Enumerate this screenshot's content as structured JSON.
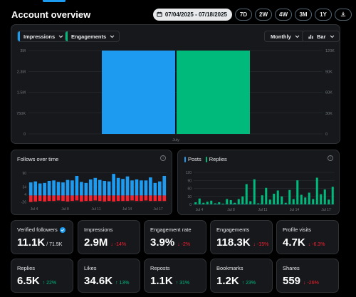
{
  "header": {
    "title": "Account overview",
    "date_range": "07/04/2025 - 07/18/2025",
    "ranges": [
      "7D",
      "2W",
      "4W",
      "3M",
      "1Y"
    ]
  },
  "main_chart": {
    "metric_left": "Impressions",
    "metric_right": "Engagements",
    "interval": "Monthly",
    "chart_type": "Bar",
    "left_color": "#1d9bf0",
    "right_color": "#00ba7c"
  },
  "follows_card": {
    "title": "Follows over time"
  },
  "posts_card": {
    "legend_posts": "Posts",
    "legend_replies": "Replies"
  },
  "metrics": [
    {
      "label": "Verified followers",
      "value": "11.1K",
      "sub": "/ 71.5K",
      "delta": "",
      "dir": ""
    },
    {
      "label": "Impressions",
      "value": "2.9M",
      "sub": "",
      "delta": "↓ -14%",
      "dir": "neg"
    },
    {
      "label": "Engagement rate",
      "value": "3.9%",
      "sub": "",
      "delta": "↓ -2%",
      "dir": "neg"
    },
    {
      "label": "Engagements",
      "value": "118.3K",
      "sub": "",
      "delta": "↓ -15%",
      "dir": "neg"
    },
    {
      "label": "Profile visits",
      "value": "4.7K",
      "sub": "",
      "delta": "↓ -6.3%",
      "dir": "neg"
    },
    {
      "label": "Replies",
      "value": "6.5K",
      "sub": "",
      "delta": "↑ 22%",
      "dir": "pos"
    },
    {
      "label": "Likes",
      "value": "34.6K",
      "sub": "",
      "delta": "↑ 13%",
      "dir": "pos"
    },
    {
      "label": "Reposts",
      "value": "1.1K",
      "sub": "",
      "delta": "↑ 31%",
      "dir": "pos"
    },
    {
      "label": "Bookmarks",
      "value": "1.2K",
      "sub": "",
      "delta": "↑ 23%",
      "dir": "pos"
    },
    {
      "label": "Shares",
      "value": "559",
      "sub": "",
      "delta": "↓ -26%",
      "dir": "neg"
    }
  ],
  "chart_data": [
    {
      "type": "bar",
      "categories": [
        "July"
      ],
      "series": [
        {
          "name": "Impressions",
          "values": [
            3000000
          ]
        },
        {
          "name": "Engagements",
          "values": [
            120000
          ]
        }
      ],
      "y_ticks_left": [
        "3M",
        "2.3M",
        "1.5M",
        "750K",
        "0"
      ],
      "y_ticks_right": [
        "120K",
        "90K",
        "60K",
        "30K",
        "0"
      ],
      "ylim_left": [
        0,
        3000000
      ],
      "ylim_right": [
        0,
        120000
      ],
      "grid": true
    },
    {
      "type": "bar",
      "title": "Follows over time",
      "x_ticks": [
        "Jul 4",
        "Jul 8",
        "Jul 11",
        "Jul 14",
        "Jul 17"
      ],
      "y_ticks": [
        "90",
        "34",
        "4",
        "-26"
      ],
      "ylim": [
        -30,
        95
      ],
      "series": [
        {
          "name": "Follows",
          "values": [
            52,
            56,
            48,
            50,
            58,
            60,
            54,
            52,
            62,
            60,
            78,
            54,
            50,
            64,
            70,
            62,
            58,
            56,
            86,
            70,
            66,
            76,
            60,
            64,
            60,
            60,
            72,
            50,
            56,
            78
          ]
        },
        {
          "name": "Unfollows",
          "values": [
            -26,
            -24,
            -22,
            -24,
            -22,
            -22,
            -20,
            -22,
            -24,
            -22,
            -20,
            -24,
            -22,
            -22,
            -20,
            -22,
            -24,
            -22,
            -24,
            -22,
            -22,
            -22,
            -20,
            -22,
            -22,
            -20,
            -22,
            -22,
            -22,
            -22
          ]
        }
      ]
    },
    {
      "type": "bar",
      "x_ticks": [
        "Jul 4",
        "Jul 8",
        "Jul 11",
        "Jul 14",
        "Jul 17"
      ],
      "y_ticks": [
        "120",
        "90",
        "60",
        "30",
        "0"
      ],
      "ylim": [
        0,
        120
      ],
      "series": [
        {
          "name": "Posts",
          "values": [
            1,
            1,
            2,
            1,
            1,
            1,
            2,
            1,
            1,
            1,
            3,
            1,
            2,
            2,
            1,
            1,
            1,
            2,
            1,
            1,
            1,
            2,
            1,
            1,
            1,
            1,
            1,
            1,
            1,
            1,
            1,
            1,
            1,
            1,
            1,
            1
          ]
        },
        {
          "name": "Replies",
          "values": [
            8,
            22,
            6,
            10,
            14,
            4,
            8,
            3,
            20,
            16,
            6,
            20,
            30,
            76,
            12,
            94,
            4,
            34,
            62,
            18,
            40,
            52,
            30,
            6,
            54,
            20,
            90,
            36,
            26,
            44,
            20,
            100,
            38,
            56,
            18,
            66
          ]
        }
      ]
    }
  ]
}
